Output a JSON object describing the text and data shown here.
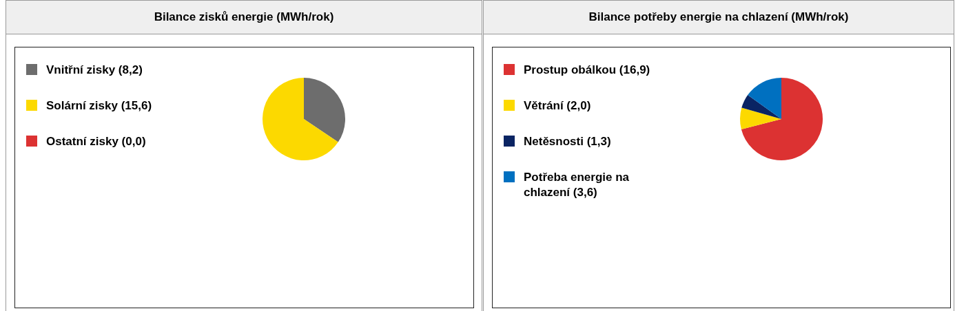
{
  "chart_data": [
    {
      "type": "pie",
      "title": "Bilance zisků energie (MWh/rok)",
      "categories": [
        "Vnitřní zisky (8,2)",
        "Solární zisky (15,6)",
        "Ostatní zisky (0,0)"
      ],
      "values": [
        8.2,
        15.6,
        0.0
      ],
      "colors": [
        "#6d6d6d",
        "#fcd900",
        "#dc3232"
      ],
      "legend": "left"
    },
    {
      "type": "pie",
      "title": "Bilance potřeby energie na chlazení (MWh/rok)",
      "categories": [
        "Prostup obálkou (16,9)",
        "Větrání (2,0)",
        "Netěsnosti (1,3)",
        "Potřeba energie na chlazení (3,6)"
      ],
      "values": [
        16.9,
        2.0,
        1.3,
        3.6
      ],
      "colors": [
        "#dc3232",
        "#fcd900",
        "#0a2463",
        "#0070c0"
      ],
      "legend": "left"
    }
  ]
}
